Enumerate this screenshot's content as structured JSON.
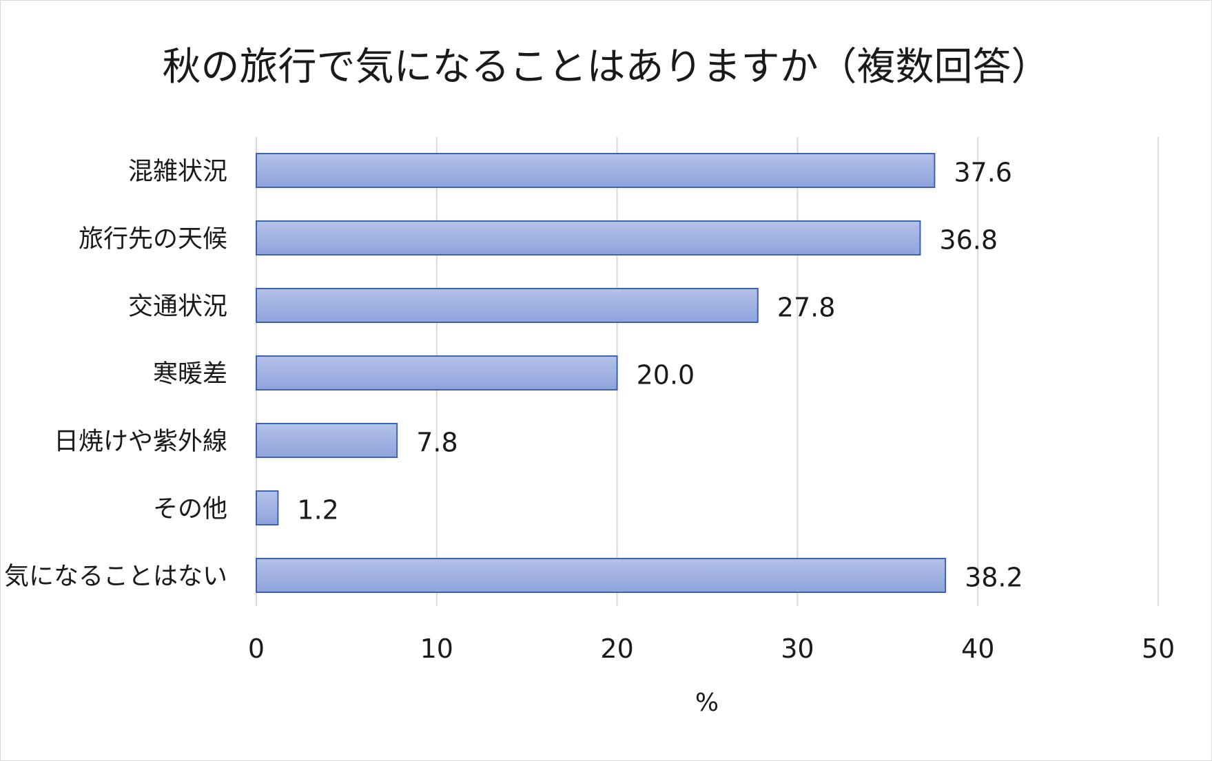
{
  "chart_data": {
    "type": "bar",
    "orientation": "horizontal",
    "title": "秋の旅行で気になることはありますか（複数回答）",
    "xlabel": "%",
    "ylabel": "",
    "categories": [
      "混雑状況",
      "旅行先の天候",
      "交通状況",
      "寒暖差",
      "日焼けや紫外線",
      "その他",
      "気になることはない"
    ],
    "values": [
      37.6,
      36.8,
      27.8,
      20.0,
      7.8,
      1.2,
      38.2
    ],
    "value_labels": [
      "37.6",
      "36.8",
      "27.8",
      "20.0",
      "7.8",
      "1.2",
      "38.2"
    ],
    "xlim": [
      0,
      50
    ],
    "xticks": [
      "0",
      "10",
      "20",
      "30",
      "40",
      "50"
    ],
    "grid": "vertical",
    "legend": "none",
    "colors": {
      "bar_fill_top": "#b4c2e8",
      "bar_fill_bottom": "#8fa3dc",
      "bar_stroke": "#3a62b5",
      "gridline": "#d9d9d9"
    }
  }
}
